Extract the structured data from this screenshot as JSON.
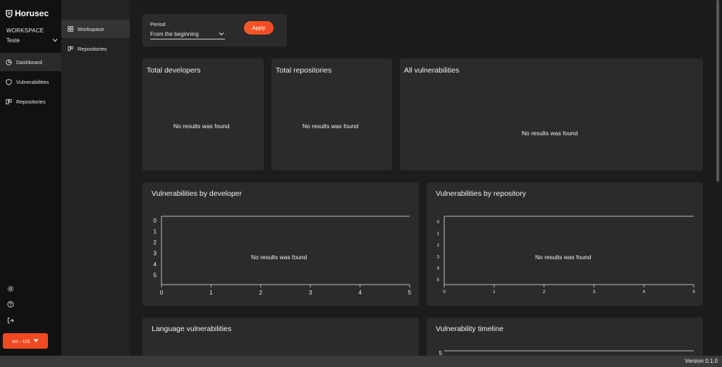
{
  "app": {
    "name": "Horusec"
  },
  "sidebar": {
    "workspace_label": "WORKSPACE",
    "workspace_value": "Teste",
    "items": [
      {
        "label": "Dashboard",
        "icon": "pie-chart-icon"
      },
      {
        "label": "Vulnerabilities",
        "icon": "shield-icon"
      },
      {
        "label": "Repositories",
        "icon": "repository-icon"
      }
    ],
    "bottom_icons": [
      "gear-icon",
      "help-icon",
      "logout-icon"
    ],
    "language": "en - US"
  },
  "subpanel": {
    "items": [
      {
        "label": "Workspace",
        "icon": "grid-icon"
      },
      {
        "label": "Repositories",
        "icon": "repository-icon"
      }
    ]
  },
  "filter": {
    "period_label": "Period",
    "period_value": "From the beginning",
    "apply_label": "Apply"
  },
  "cards": {
    "total_developers": {
      "title": "Total developers",
      "empty": "No results was found"
    },
    "total_repositories": {
      "title": "Total repositories",
      "empty": "No results was found"
    },
    "all_vulnerabilities": {
      "title": "All vulnerabilities",
      "empty": "No results was found"
    },
    "vuln_by_developer": {
      "title": "Vulnerabilities by developer",
      "empty": "No results was found"
    },
    "vuln_by_repository": {
      "title": "Vulnerabilities by repository",
      "empty": "No results was found"
    },
    "language_vulnerabilities": {
      "title": "Language vulnerabilities"
    },
    "vulnerability_timeline": {
      "title": "Vulnerability timeline"
    }
  },
  "footer": {
    "version": "Version 0.1.0"
  },
  "colors": {
    "accent": "#f04a23",
    "background": "#1c1c1e",
    "card": "#2b2b2d"
  },
  "chart_data": [
    {
      "type": "bar",
      "title": "Vulnerabilities by developer",
      "y_ticks": [
        "0",
        "1",
        "2",
        "3",
        "4",
        "5"
      ],
      "x_ticks": [
        "0",
        "1",
        "2",
        "3",
        "4",
        "5"
      ],
      "series": []
    },
    {
      "type": "bar",
      "title": "Vulnerabilities by repository",
      "y_ticks": [
        "0",
        "1",
        "2",
        "3",
        "4",
        "5"
      ],
      "x_ticks": [
        "0",
        "1",
        "2",
        "3",
        "4",
        "5"
      ],
      "series": []
    },
    {
      "type": "line",
      "title": "Vulnerability timeline",
      "y_ticks": [
        "5"
      ],
      "series": []
    }
  ]
}
